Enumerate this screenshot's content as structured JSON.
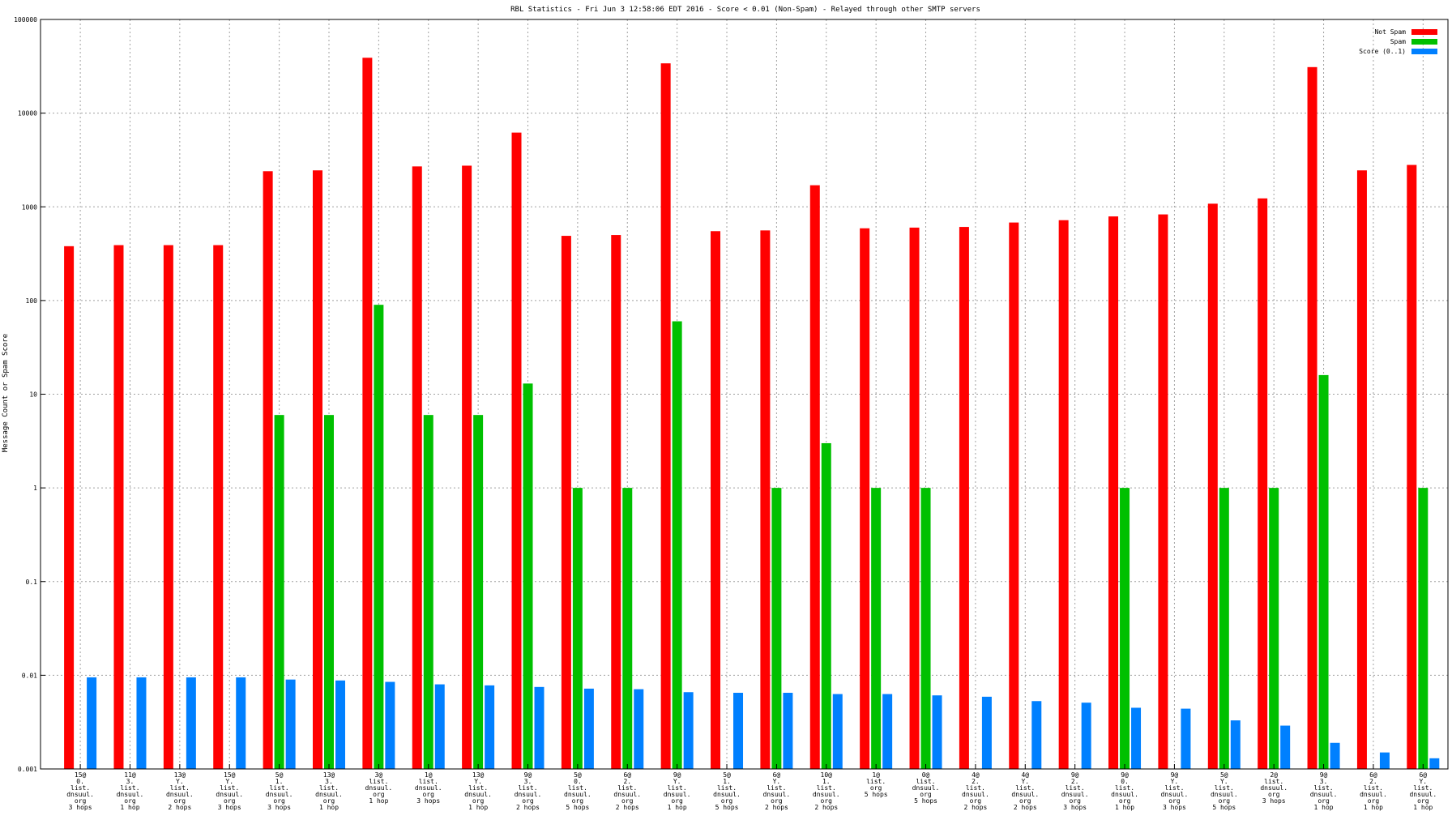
{
  "chart_data": {
    "type": "bar",
    "title": "RBL Statistics - Fri Jun  3 12:58:06 EDT 2016 - Score < 0.01 (Non-Spam) - Relayed through other SMTP servers",
    "ylabel": "Message Count or Spam Score",
    "xlabel": "",
    "yscale": "log",
    "ylim": [
      0.001,
      100000
    ],
    "y_ticks": [
      "0.001",
      "0.01",
      "0.1",
      "1",
      "10",
      "100",
      "1000",
      "10000",
      "100000"
    ],
    "grid": true,
    "legend_position": "top-right",
    "categories": [
      "15@|0.|list.|dnsuul.|org|3 hops",
      "11@|3.|list.|dnsuul.|org|1 hop",
      "13@|Y.|list.|dnsuul.|org|2 hops",
      "15@|Y.|list.|dnsuul.|org|3 hops",
      "5@|1.|list.|dnsuul.|org|3 hops",
      "13@|3.|list.|dnsuul.|org|1 hop",
      "3@|list.|dnsuul.|org|1 hop",
      "1@|list.|dnsuul.|org|3 hops",
      "13@|Y.|list.|dnsuul.|org|1 hop",
      "9@|3.|list.|dnsuul.|org|2 hops",
      "5@|0.|list.|dnsuul.|org|5 hops",
      "6@|2.|list.|dnsuul.|org|2 hops",
      "9@|Y.|list.|dnsuul.|org|1 hop",
      "5@|1.|list.|dnsuul.|org|5 hops",
      "6@|Y.|list.|dnsuul.|org|2 hops",
      "10@|1.|list.|dnsuul.|org|2 hops",
      "1@|list.|org|5 hops",
      "0@|list.|dnsuul.|org|5 hops",
      "4@|2.|list.|dnsuul.|org|2 hops",
      "4@|Y.|list.|dnsuul.|org|2 hops",
      "9@|2.|list.|dnsuul.|org|3 hops",
      "9@|0.|list.|dnsuul.|org|1 hop",
      "9@|Y.|list.|dnsuul.|org|3 hops",
      "5@|Y.|list.|dnsuul.|org|5 hops",
      "2@|list.|dnsuul.|org|3 hops",
      "9@|3.|list.|dnsuul.|org|1 hop",
      "6@|2.|list.|dnsuul.|org|1 hop",
      "6@|Y.|list.|dnsuul.|org|1 hop"
    ],
    "series": [
      {
        "name": "Not Spam",
        "color": "#ff0000",
        "values": [
          380,
          390,
          390,
          390,
          2400,
          2450,
          39000,
          2700,
          2750,
          6200,
          490,
          500,
          34000,
          550,
          560,
          1700,
          590,
          600,
          610,
          680,
          720,
          790,
          830,
          1080,
          1230,
          31000,
          2450,
          2800
        ]
      },
      {
        "name": "Spam",
        "color": "#00c000",
        "values": [
          null,
          null,
          null,
          null,
          6,
          6,
          90,
          6,
          6,
          13,
          1,
          1,
          60,
          null,
          1,
          3,
          1,
          1,
          null,
          null,
          null,
          1,
          null,
          1,
          1,
          16,
          null,
          1
        ]
      },
      {
        "name": "Score (0..1)",
        "color": "#0080ff",
        "values": [
          0.0095,
          0.0095,
          0.0095,
          0.0095,
          0.009,
          0.0088,
          0.0085,
          0.008,
          0.0078,
          0.0075,
          0.0072,
          0.0071,
          0.0066,
          0.0065,
          0.0065,
          0.0063,
          0.0063,
          0.0061,
          0.0059,
          0.0053,
          0.0051,
          0.0045,
          0.0044,
          0.0033,
          0.0029,
          0.0019,
          0.0015,
          0.0013
        ]
      }
    ]
  }
}
